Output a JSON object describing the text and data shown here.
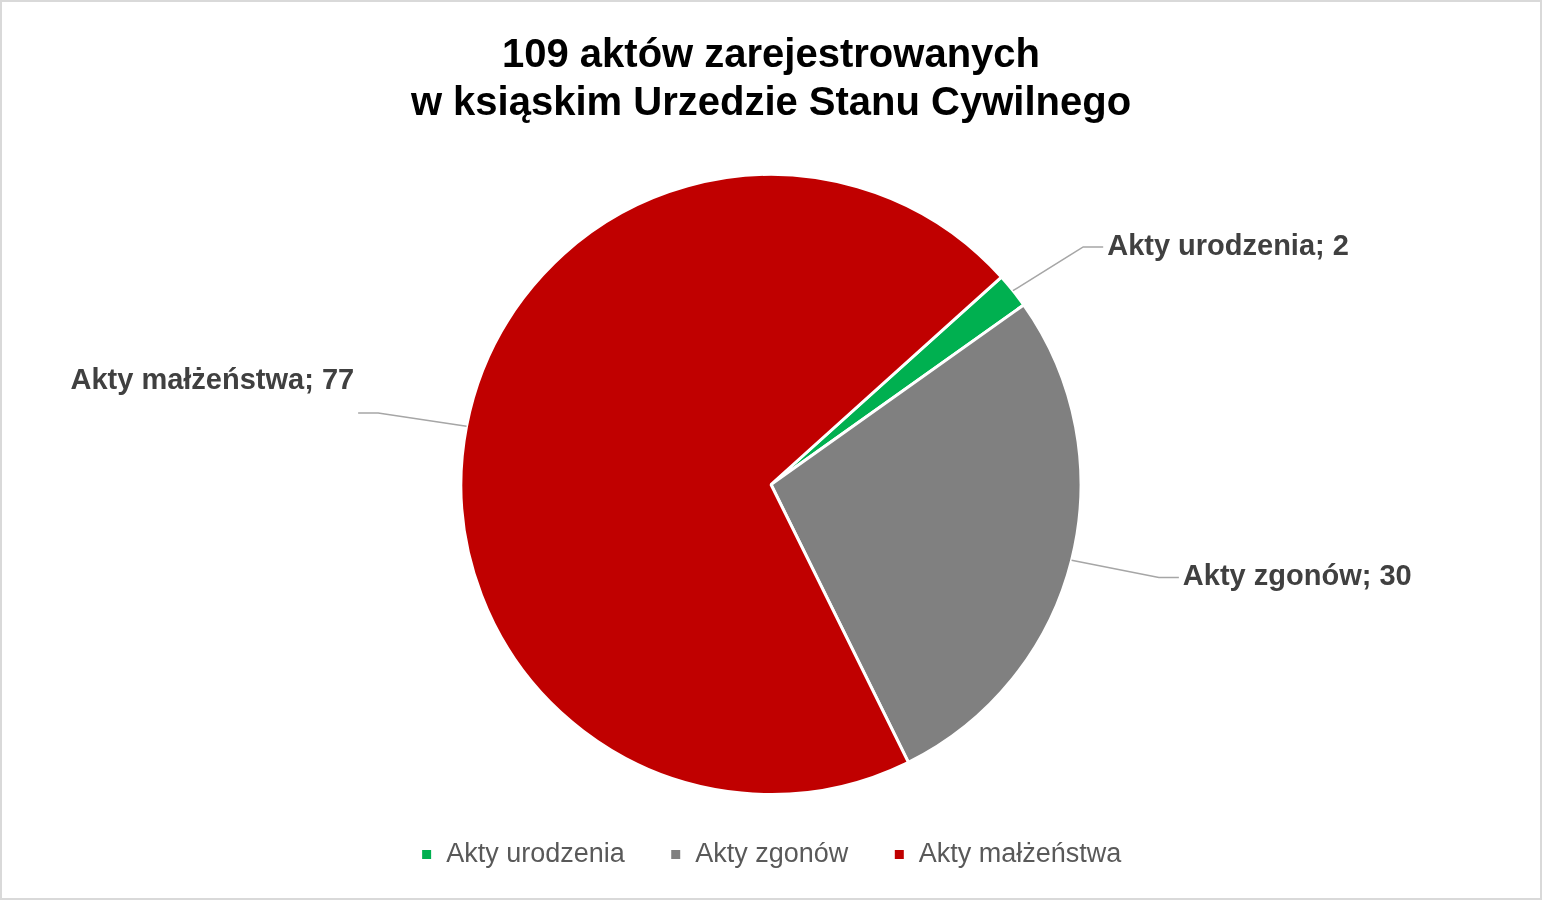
{
  "chart_data": {
    "type": "pie",
    "title": "109 aktów zarejestrowanych\nw ksiąskim Urzedzie Stanu Cywilnego",
    "categories": [
      "Akty urodzenia",
      "Akty zgonów",
      "Akty małżeństwa"
    ],
    "values": [
      2,
      30,
      77
    ],
    "colors": [
      "#00b050",
      "#808080",
      "#c00000"
    ],
    "value_labels": [
      "Akty urodzenia; 2",
      "Akty zgonów; 30",
      "Akty małżeństwa; 77"
    ],
    "legend": "bottom"
  }
}
